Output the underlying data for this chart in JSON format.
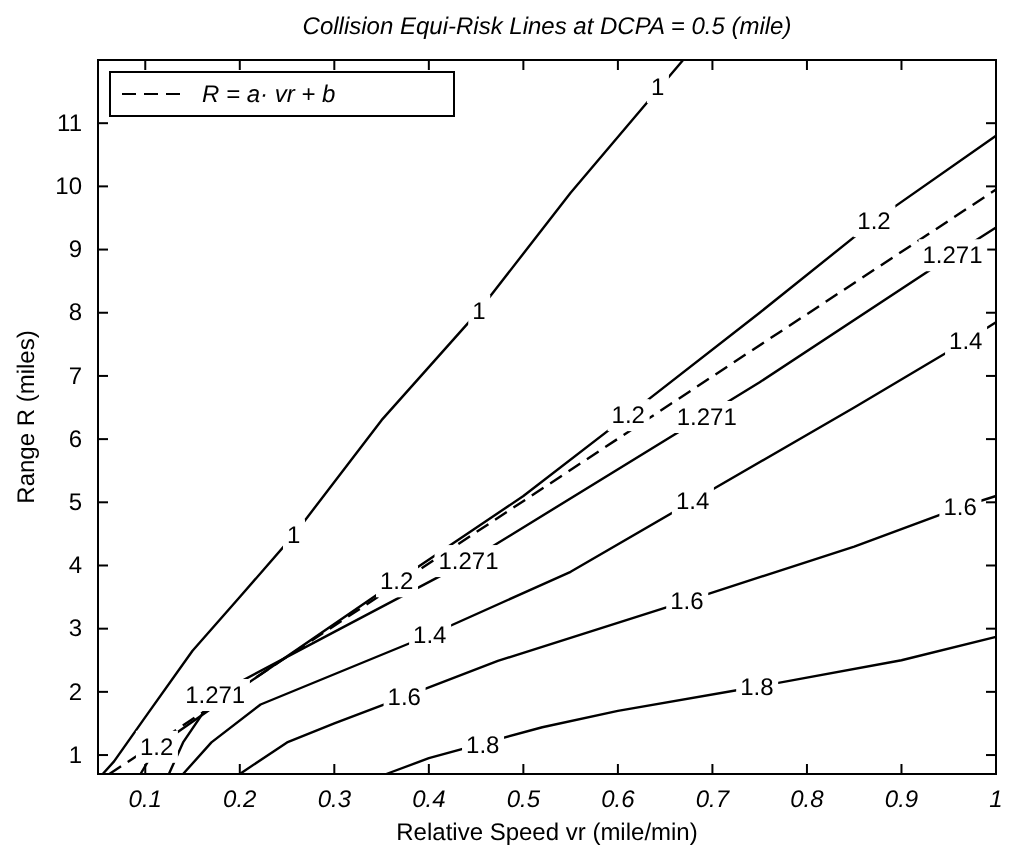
{
  "chart_data": {
    "type": "line",
    "title": "Collision Equi-Risk Lines at DCPA = 0.5 (mile)",
    "xlabel": "Relative Speed vr (mile/min)",
    "ylabel": "Range R (miles)",
    "xlim": [
      0.05,
      1
    ],
    "ylim": [
      0.7,
      12
    ],
    "xticks": [
      0.1,
      0.2,
      0.3,
      0.4,
      0.5,
      0.6,
      0.7,
      0.8,
      0.9,
      1
    ],
    "yticks": [
      1,
      2,
      3,
      4,
      5,
      6,
      7,
      8,
      9,
      10,
      11
    ],
    "grid": false,
    "legend": "top left",
    "series": [
      {
        "color": "#000000",
        "x": [
          0.055,
          0.067,
          0.1,
          0.15,
          0.2,
          0.257,
          0.35,
          0.453,
          0.55,
          0.669
        ],
        "values": [
          0.7,
          0.9,
          1.6,
          2.65,
          3.5,
          4.48,
          6.3,
          8.03,
          9.9,
          12
        ]
      },
      {
        "color": "#000000",
        "x": [
          0.095,
          0.112,
          0.2,
          0.366,
          0.5,
          0.611,
          0.75,
          0.871,
          1
        ],
        "values": [
          0.7,
          1.13,
          2.05,
          3.75,
          5.1,
          6.38,
          8,
          9.45,
          10.8
        ]
      },
      {
        "color": "#000000",
        "x": [
          0.125,
          0.14,
          0.174,
          0.3,
          0.442,
          0.75,
          0.954,
          1
        ],
        "values": [
          0.7,
          1.2,
          1.95,
          2.95,
          4.07,
          6.9,
          8.91,
          9.35
        ]
      },
      {
        "color": "#000000",
        "x": [
          0.14,
          0.17,
          0.222,
          0.401,
          0.55,
          0.679,
          0.85,
          0.968,
          1
        ],
        "values": [
          0.7,
          1.2,
          1.8,
          2.9,
          3.9,
          5.02,
          6.5,
          7.55,
          7.85
        ]
      },
      {
        "color": "#000000",
        "x": [
          0.2,
          0.25,
          0.3,
          0.374,
          0.473,
          0.673,
          0.85,
          0.962,
          1
        ],
        "values": [
          0.7,
          1.2,
          1.5,
          1.92,
          2.49,
          3.44,
          4.3,
          4.92,
          5.1
        ]
      },
      {
        "color": "#000000",
        "x": [
          0.355,
          0.4,
          0.52,
          0.6,
          0.747,
          0.9,
          1
        ],
        "values": [
          0.7,
          0.95,
          1.44,
          1.7,
          2.08,
          2.5,
          2.87
        ]
      },
      {
        "name": "R = a· vr + b",
        "color": "#000000",
        "line_style": "dashed",
        "x": [
          0.062,
          1
        ],
        "values": [
          0.7,
          9.95
        ]
      }
    ],
    "annotations": [
      {
        "text": "1",
        "x": 0.257,
        "y": 4.48
      },
      {
        "text": "1",
        "x": 0.453,
        "y": 8.03
      },
      {
        "text": "1",
        "x": 0.642,
        "y": 11.57
      },
      {
        "text": "1.2",
        "x": 0.112,
        "y": 1.13
      },
      {
        "text": "1.2",
        "x": 0.366,
        "y": 3.75
      },
      {
        "text": "1.2",
        "x": 0.611,
        "y": 6.38
      },
      {
        "text": "1.2",
        "x": 0.871,
        "y": 9.45
      },
      {
        "text": "1.271",
        "x": 0.174,
        "y": 1.95
      },
      {
        "text": "1.271",
        "x": 0.442,
        "y": 4.07
      },
      {
        "text": "1.271",
        "x": 0.694,
        "y": 6.35
      },
      {
        "text": "1.271",
        "x": 0.954,
        "y": 8.91
      },
      {
        "text": "1.4",
        "x": 0.401,
        "y": 2.9
      },
      {
        "text": "1.4",
        "x": 0.679,
        "y": 5.02
      },
      {
        "text": "1.4",
        "x": 0.968,
        "y": 7.55
      },
      {
        "text": "1.6",
        "x": 0.374,
        "y": 1.92
      },
      {
        "text": "1.6",
        "x": 0.673,
        "y": 3.44
      },
      {
        "text": "1.6",
        "x": 0.962,
        "y": 4.92
      },
      {
        "text": "1.8",
        "x": 0.457,
        "y": 1.16
      },
      {
        "text": "1.8",
        "x": 0.747,
        "y": 2.08
      }
    ]
  }
}
